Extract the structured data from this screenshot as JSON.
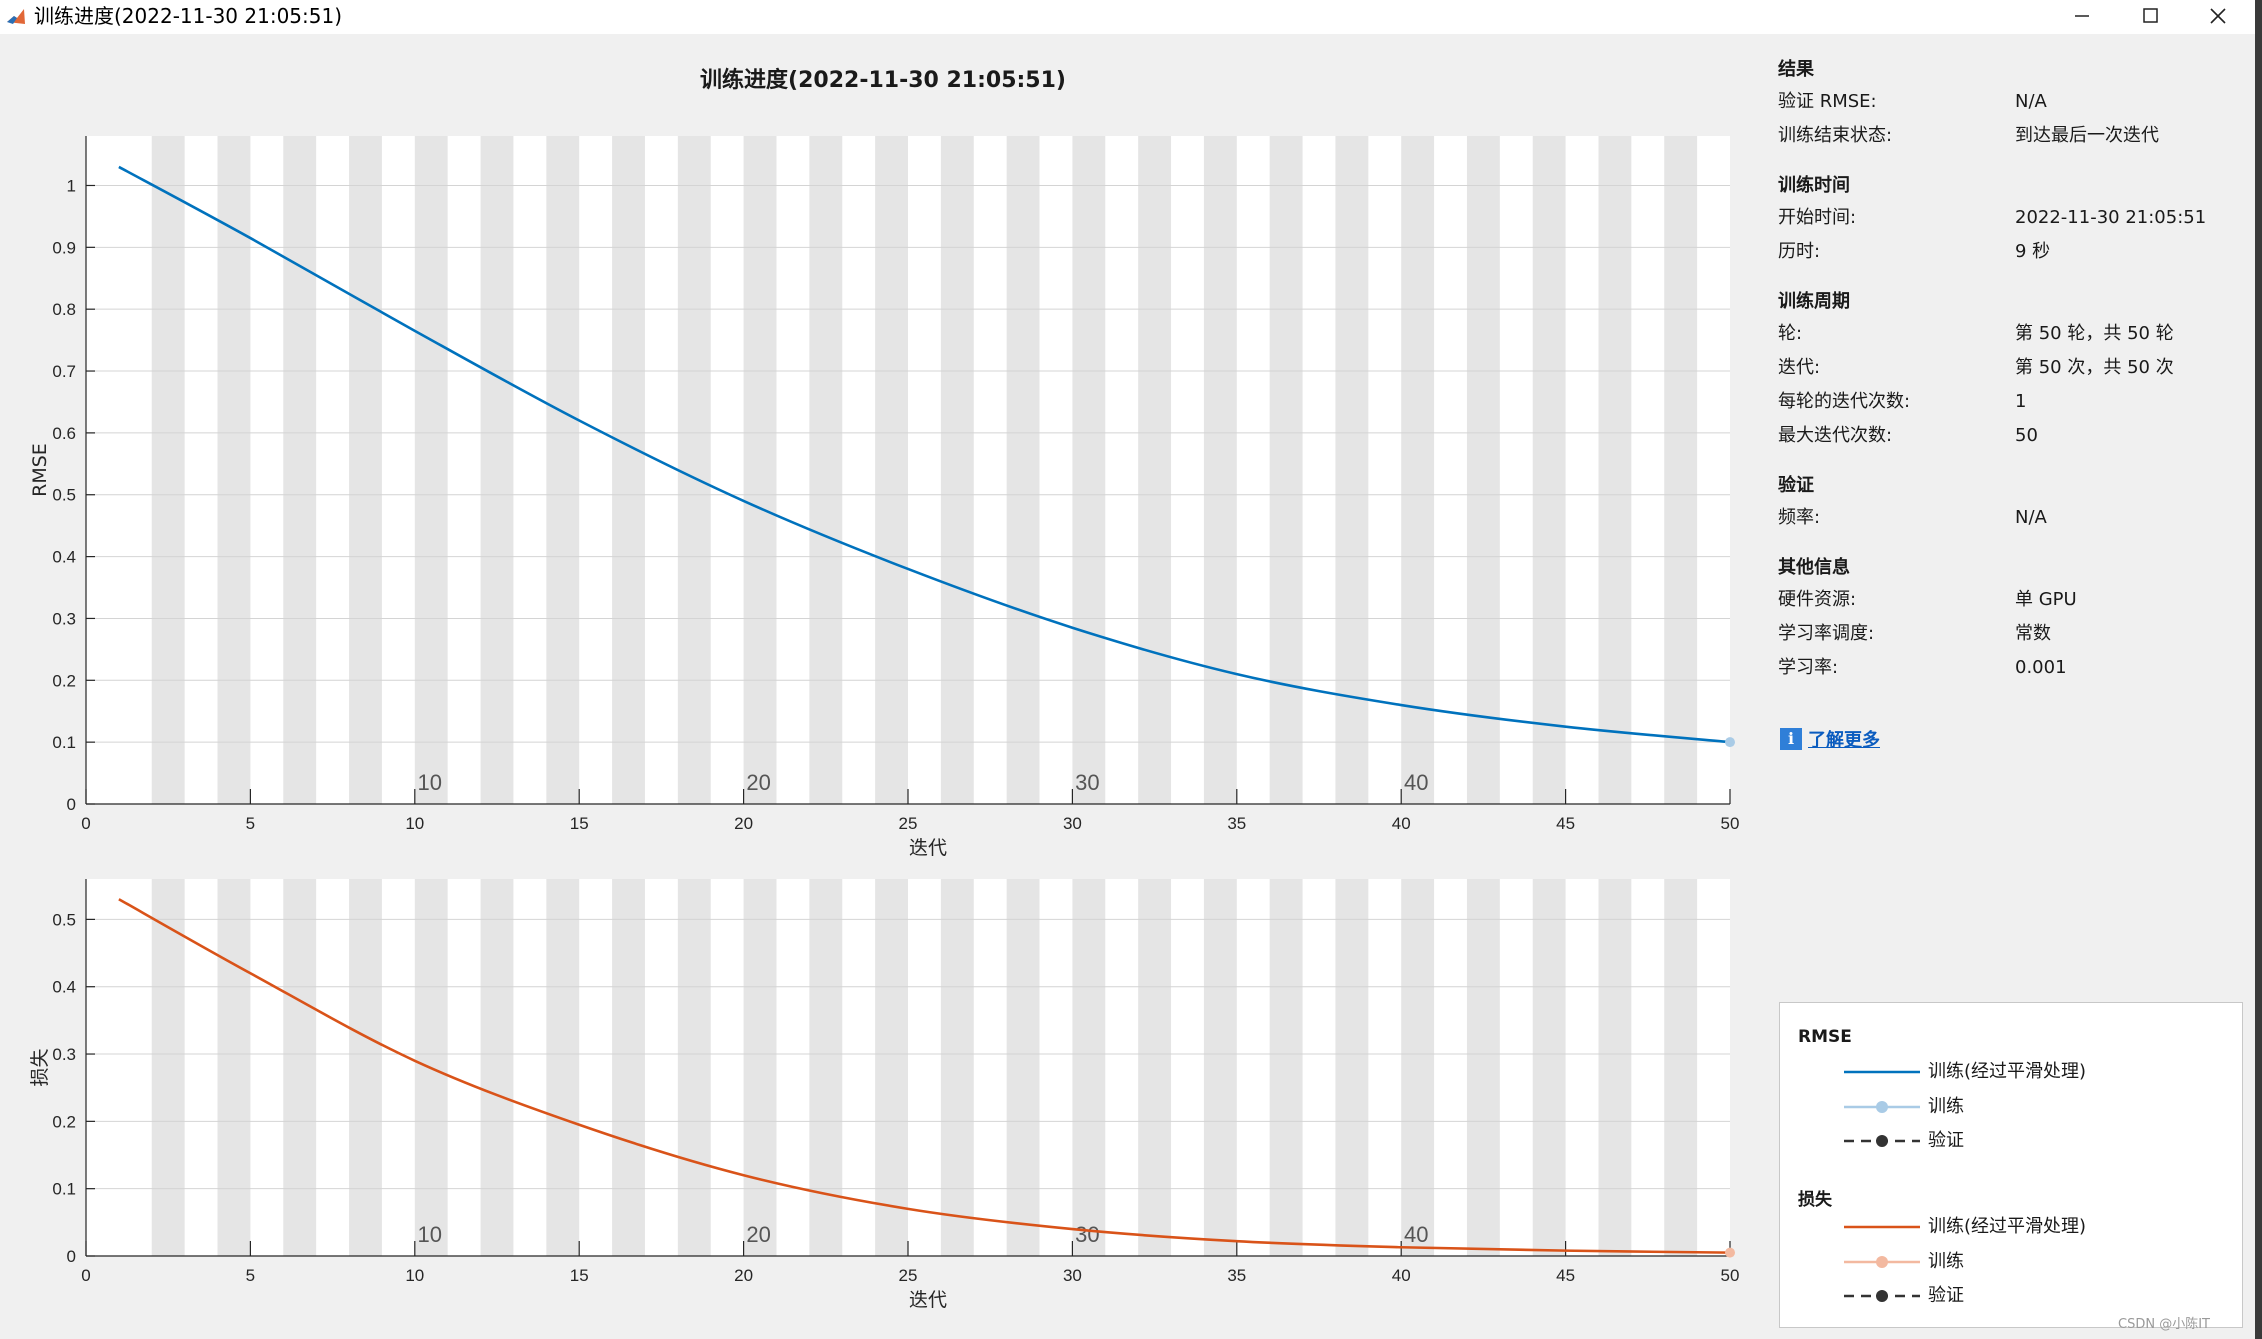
{
  "window": {
    "title": "训练进度(2022-11-30 21:05:51)"
  },
  "chart_title": "训练进度(2022-11-30 21:05:51)",
  "info": {
    "results": {
      "heading": "结果",
      "rows": [
        {
          "label": "验证 RMSE:",
          "value": "N/A"
        },
        {
          "label": "训练结束状态:",
          "value": "到达最后一次迭代"
        }
      ]
    },
    "time": {
      "heading": "训练时间",
      "rows": [
        {
          "label": "开始时间:",
          "value": "2022-11-30 21:05:51"
        },
        {
          "label": "历时:",
          "value": "9 秒"
        }
      ]
    },
    "cycle": {
      "heading": "训练周期",
      "rows": [
        {
          "label": "轮:",
          "value": "第 50 轮，共 50 轮"
        },
        {
          "label": "迭代:",
          "value": "第 50 次，共 50 次"
        },
        {
          "label": "每轮的迭代次数:",
          "value": "1"
        },
        {
          "label": "最大迭代次数:",
          "value": "50"
        }
      ]
    },
    "validation": {
      "heading": "验证",
      "rows": [
        {
          "label": "频率:",
          "value": "N/A"
        }
      ]
    },
    "other": {
      "heading": "其他信息",
      "rows": [
        {
          "label": "硬件资源:",
          "value": "单 GPU"
        },
        {
          "label": "学习率调度:",
          "value": "常数"
        },
        {
          "label": "学习率:",
          "value": "0.001"
        }
      ]
    },
    "learn_more": "了解更多"
  },
  "legend": {
    "rmse": {
      "title": "RMSE",
      "items": [
        "训练(经过平滑处理)",
        "训练",
        "验证"
      ]
    },
    "loss": {
      "title": "损失",
      "items": [
        "训练(经过平滑处理)",
        "训练",
        "验证"
      ]
    }
  },
  "watermark": "CSDN @小陈IT",
  "colors": {
    "rmse": "#0072bd",
    "rmse_light": "#a9cbe6",
    "loss": "#d95319",
    "loss_light": "#f3b9a0",
    "validation": "#333333",
    "band": "#e5e5e5"
  },
  "chart_data": [
    {
      "type": "line",
      "ylabel": "RMSE",
      "xlabel": "迭代",
      "xlim": [
        0,
        50
      ],
      "ylim": [
        0,
        1.08
      ],
      "xticks": [
        0,
        5,
        10,
        15,
        20,
        25,
        30,
        35,
        40,
        45,
        50
      ],
      "yticks": [
        0,
        0.1,
        0.2,
        0.3,
        0.4,
        0.5,
        0.6,
        0.7,
        0.8,
        0.9,
        1
      ],
      "epoch_labels": [
        {
          "x": 10,
          "label": "10"
        },
        {
          "x": 20,
          "label": "20"
        },
        {
          "x": 30,
          "label": "30"
        },
        {
          "x": 40,
          "label": "40"
        }
      ],
      "bands": [
        [
          2,
          3
        ],
        [
          4,
          5
        ],
        [
          6,
          7
        ],
        [
          8,
          9
        ],
        [
          10,
          11
        ],
        [
          12,
          13
        ],
        [
          14,
          15
        ],
        [
          16,
          17
        ],
        [
          18,
          19
        ],
        [
          20,
          21
        ],
        [
          22,
          23
        ],
        [
          24,
          25
        ],
        [
          26,
          27
        ],
        [
          28,
          29
        ],
        [
          30,
          31
        ],
        [
          32,
          33
        ],
        [
          34,
          35
        ],
        [
          36,
          37
        ],
        [
          38,
          39
        ],
        [
          40,
          41
        ],
        [
          42,
          43
        ],
        [
          44,
          45
        ],
        [
          46,
          47
        ],
        [
          48,
          49
        ]
      ],
      "grid": true,
      "series": [
        {
          "name": "训练(经过平滑处理)",
          "x": [
            1,
            5,
            10,
            15,
            20,
            25,
            30,
            35,
            40,
            45,
            50
          ],
          "values": [
            1.03,
            0.915,
            0.765,
            0.62,
            0.49,
            0.38,
            0.285,
            0.21,
            0.16,
            0.125,
            0.1
          ]
        }
      ]
    },
    {
      "type": "line",
      "ylabel": "损失",
      "xlabel": "迭代",
      "xlim": [
        0,
        50
      ],
      "ylim": [
        0,
        0.56
      ],
      "xticks": [
        0,
        5,
        10,
        15,
        20,
        25,
        30,
        35,
        40,
        45,
        50
      ],
      "yticks": [
        0,
        0.1,
        0.2,
        0.3,
        0.4,
        0.5
      ],
      "epoch_labels": [
        {
          "x": 10,
          "label": "10"
        },
        {
          "x": 20,
          "label": "20"
        },
        {
          "x": 30,
          "label": "30"
        },
        {
          "x": 40,
          "label": "40"
        }
      ],
      "bands": [
        [
          2,
          3
        ],
        [
          4,
          5
        ],
        [
          6,
          7
        ],
        [
          8,
          9
        ],
        [
          10,
          11
        ],
        [
          12,
          13
        ],
        [
          14,
          15
        ],
        [
          16,
          17
        ],
        [
          18,
          19
        ],
        [
          20,
          21
        ],
        [
          22,
          23
        ],
        [
          24,
          25
        ],
        [
          26,
          27
        ],
        [
          28,
          29
        ],
        [
          30,
          31
        ],
        [
          32,
          33
        ],
        [
          34,
          35
        ],
        [
          36,
          37
        ],
        [
          38,
          39
        ],
        [
          40,
          41
        ],
        [
          42,
          43
        ],
        [
          44,
          45
        ],
        [
          46,
          47
        ],
        [
          48,
          49
        ]
      ],
      "grid": true,
      "series": [
        {
          "name": "训练(经过平滑处理)",
          "x": [
            1,
            5,
            10,
            15,
            20,
            25,
            30,
            35,
            40,
            45,
            50
          ],
          "values": [
            0.53,
            0.42,
            0.29,
            0.195,
            0.12,
            0.07,
            0.04,
            0.022,
            0.013,
            0.008,
            0.005
          ]
        }
      ]
    }
  ]
}
